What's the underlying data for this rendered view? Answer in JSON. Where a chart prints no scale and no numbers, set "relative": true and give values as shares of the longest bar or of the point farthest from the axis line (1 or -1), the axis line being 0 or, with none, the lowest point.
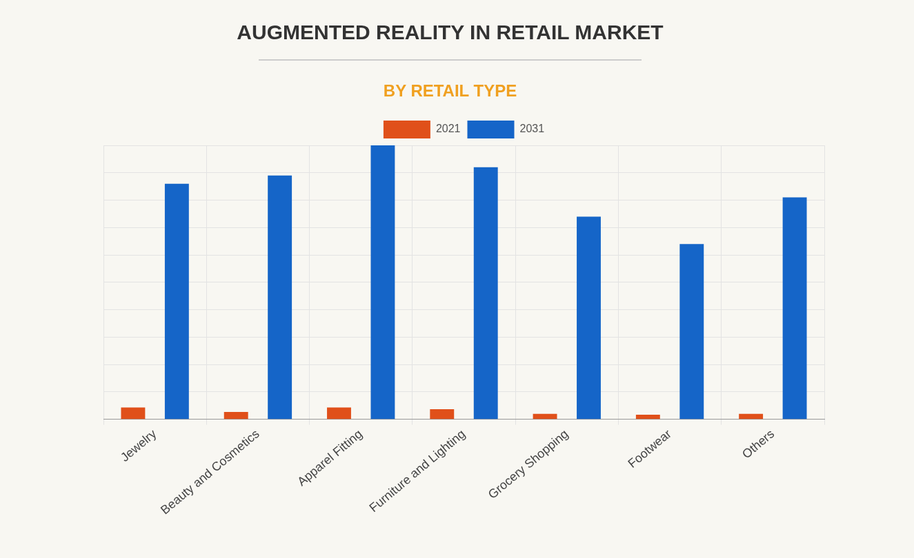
{
  "chart_data": {
    "type": "bar",
    "title": "AUGMENTED REALITY IN RETAIL MARKET",
    "subtitle": "BY RETAIL TYPE",
    "categories": [
      "Jewelry",
      "Beauty and Cosmetics",
      "Apparel Fitting",
      "Furniture and Lighting",
      "Grocery Shopping",
      "Footwear",
      "Others"
    ],
    "series": [
      {
        "name": "2021",
        "color": "#e0501a",
        "values": [
          0.043,
          0.027,
          0.043,
          0.037,
          0.02,
          0.017,
          0.02
        ]
      },
      {
        "name": "2031",
        "color": "#1565c8",
        "values": [
          0.86,
          0.89,
          1,
          0.92,
          0.74,
          0.64,
          0.81
        ]
      }
    ],
    "relative": true,
    "grid": true,
    "legend": "top"
  }
}
